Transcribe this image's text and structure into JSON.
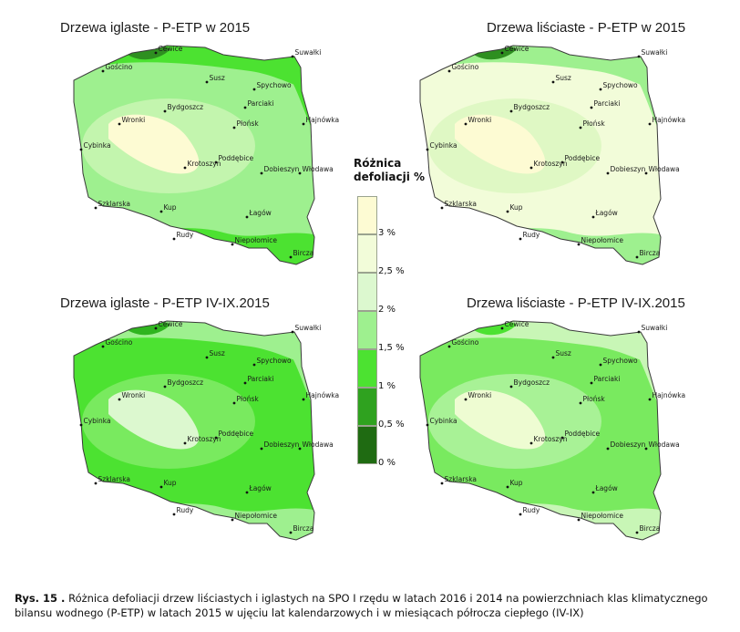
{
  "maps": [
    {
      "title": "Drzewa iglaste - P-ETP w 2015",
      "colors": {
        "base": "#9ef08f",
        "ring": "#c3f5ae",
        "core": "#fdfbd3",
        "mid": "#4ce231",
        "dark": "#2e8f20"
      }
    },
    {
      "title": "Drzewa liściaste - P-ETP w 2015",
      "colors": {
        "base": "#f2fcd9",
        "ring": "#dff8c4",
        "core": "#fdfbd3",
        "mid": "#9ef08f",
        "dark": "#2e8f20"
      }
    },
    {
      "title": "Drzewa iglaste - P-ETP IV-IX.2015",
      "colors": {
        "base": "#4ce231",
        "ring": "#79ea5f",
        "core": "#dcf8cf",
        "mid": "#9ef08f",
        "dark": "#2fb51f"
      }
    },
    {
      "title": "Drzewa liściaste - P-ETP IV-IX.2015",
      "colors": {
        "base": "#79ea5f",
        "ring": "#a8f296",
        "core": "#eefcd2",
        "mid": "#c8f6b6",
        "dark": "#4ce231"
      }
    }
  ],
  "cities": [
    "Cewice",
    "Suwałki",
    "Gościno",
    "Susz",
    "Spychowo",
    "Parciaki",
    "Bydgoszcz",
    "Wronki",
    "Płońsk",
    "Hajnówka",
    "Cybinka",
    "Poddębice",
    "Krotoszyn",
    "Dobieszyn",
    "Włodawa",
    "Szklarska",
    "Kup",
    "Łagów",
    "Rudy",
    "Niepołomice",
    "Bircza"
  ],
  "legend": {
    "title_line1": "Różnica",
    "title_line2": "defoliacji %",
    "classes": [
      {
        "color": "#fdfbd3"
      },
      {
        "color": "#f2fcd9"
      },
      {
        "color": "#dcf8cf"
      },
      {
        "color": "#9ef08f"
      },
      {
        "color": "#4ce231"
      },
      {
        "color": "#2fa21f"
      },
      {
        "color": "#1f6b12"
      }
    ],
    "ticks": [
      "3 %",
      "2,5 %",
      "2 %",
      "1,5 %",
      "1 %",
      "0,5 %",
      "0 %"
    ]
  },
  "caption": {
    "label": "Rys. 15 .",
    "text": "Różnica defoliacji drzew liściastych i iglastych na SPO I rzędu w latach 2016 i 2014 na powierzchniach klas klimatycznego bilansu wodnego (P-ETP) w latach 2015 w ujęciu lat kalendarzowych i w miesiącach półrocza ciepłego (IV-IX)"
  }
}
